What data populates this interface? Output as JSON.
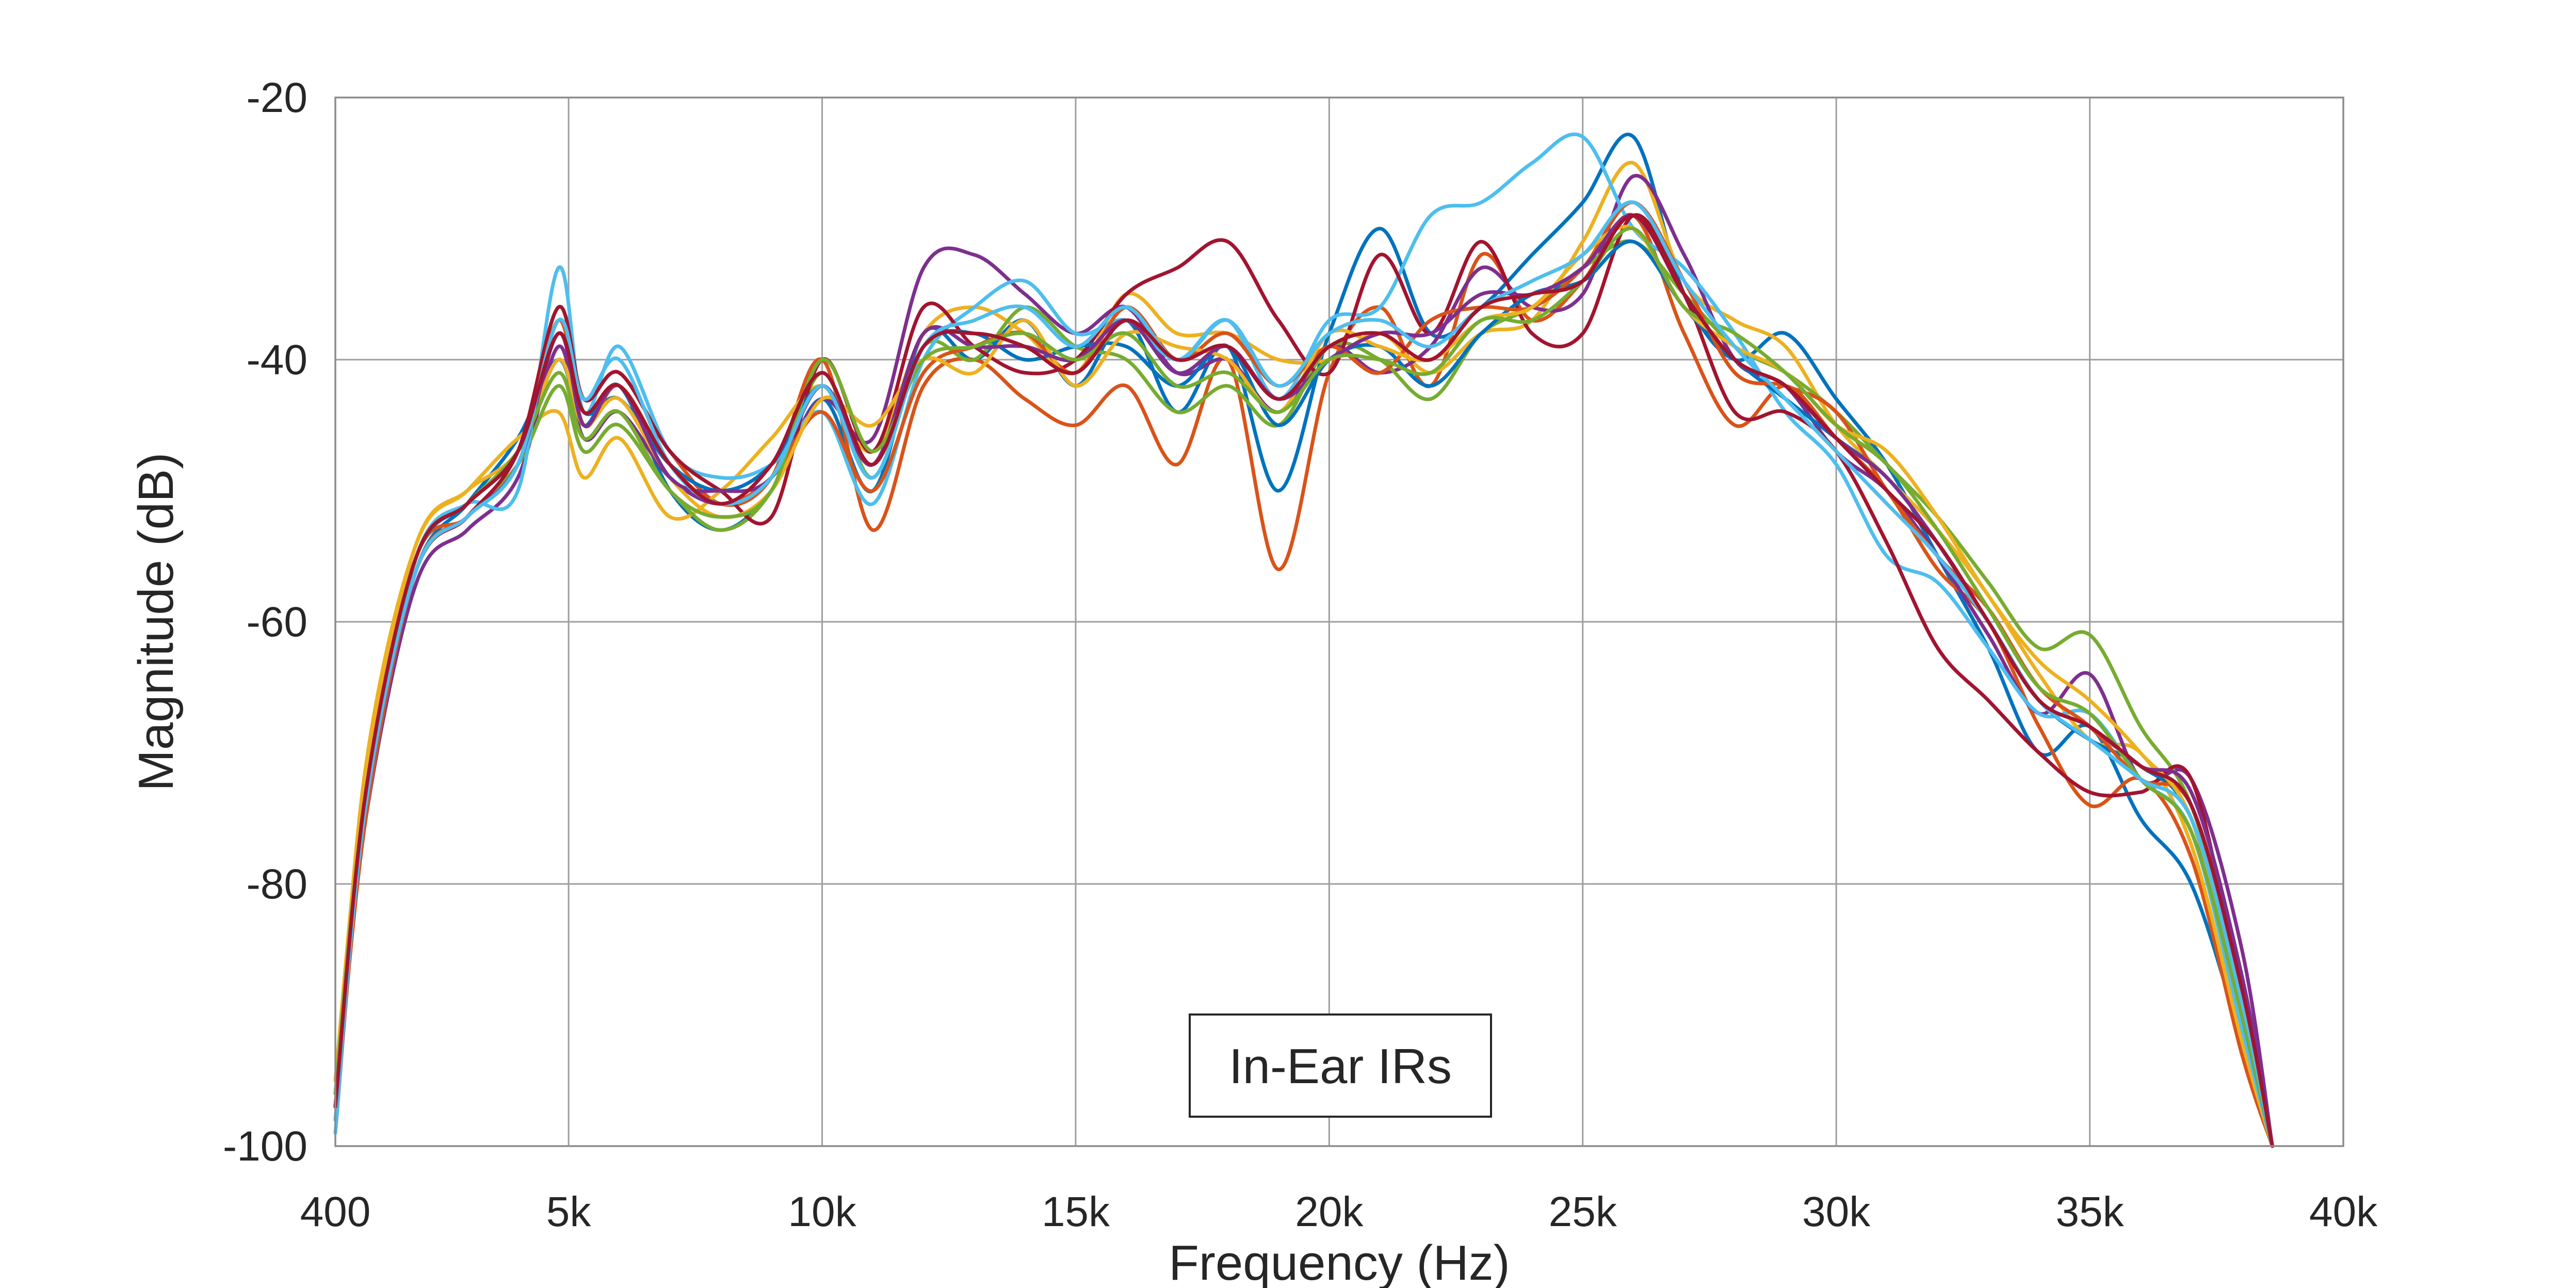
{
  "chart_data": {
    "type": "line",
    "title": "",
    "xlabel": "Frequency (Hz)",
    "ylabel": "Magnitude (dB)",
    "xlim": [
      400,
      40000
    ],
    "ylim": [
      -100,
      -20
    ],
    "x_ticks": [
      400,
      5000,
      10000,
      15000,
      20000,
      25000,
      30000,
      35000,
      40000
    ],
    "x_tick_labels": [
      "400",
      "5k",
      "10k",
      "15k",
      "20k",
      "25k",
      "30k",
      "35k",
      "40k"
    ],
    "y_ticks": [
      -20,
      -40,
      -60,
      -80,
      -100
    ],
    "y_tick_labels": [
      "-20",
      "-40",
      "-60",
      "-80",
      "-100"
    ],
    "grid": true,
    "legend": {
      "text": "In-Ear IRs",
      "placement": "bottom-center"
    },
    "x": [
      400,
      1000,
      2000,
      3000,
      4000,
      4800,
      5300,
      6000,
      7000,
      8000,
      9000,
      10000,
      11000,
      12000,
      13000,
      14000,
      15000,
      16000,
      17000,
      18000,
      19000,
      20000,
      21000,
      22000,
      23000,
      24000,
      25000,
      26000,
      27000,
      28000,
      29000,
      30000,
      31000,
      32000,
      33000,
      34000,
      35000,
      36000,
      37000,
      38000,
      38600
    ],
    "series": [
      {
        "color": "#0072BD",
        "values": [
          -98,
          -74,
          -56,
          -51,
          -46,
          -40,
          -45,
          -42,
          -50,
          -53,
          -50,
          -43,
          -50,
          -38,
          -40,
          -37,
          -42,
          -37,
          -44,
          -39,
          -50,
          -38,
          -30,
          -38,
          -36,
          -32,
          -28,
          -23,
          -35,
          -40,
          -38,
          -43,
          -48,
          -55,
          -62,
          -70,
          -68,
          -75,
          -80,
          -92,
          -100
        ]
      },
      {
        "color": "#D95319",
        "values": [
          -97,
          -73,
          -55,
          -52,
          -47,
          -36,
          -43,
          -41,
          -47,
          -51,
          -49,
          -40,
          -53,
          -42,
          -40,
          -43,
          -45,
          -42,
          -48,
          -40,
          -56,
          -41,
          -36,
          -42,
          -32,
          -37,
          -34,
          -29,
          -38,
          -45,
          -42,
          -46,
          -50,
          -56,
          -60,
          -68,
          -74,
          -72,
          -78,
          -93,
          -100
        ]
      },
      {
        "color": "#EDB120",
        "values": [
          -97,
          -71,
          -54,
          -50,
          -46,
          -44,
          -49,
          -46,
          -52,
          -50,
          -46,
          -42,
          -47,
          -38,
          -36,
          -38,
          -41,
          -35,
          -38,
          -38,
          -40,
          -40,
          -38,
          -41,
          -38,
          -37,
          -31,
          -25,
          -34,
          -37,
          -39,
          -45,
          -49,
          -53,
          -58,
          -64,
          -69,
          -70,
          -77,
          -92,
          -100
        ]
      },
      {
        "color": "#7E2F8E",
        "values": [
          -96,
          -75,
          -57,
          -53,
          -49,
          -39,
          -46,
          -44,
          -49,
          -51,
          -49,
          -43,
          -46,
          -33,
          -32,
          -35,
          -38,
          -36,
          -41,
          -40,
          -44,
          -39,
          -41,
          -39,
          -33,
          -36,
          -35,
          -26,
          -32,
          -40,
          -42,
          -47,
          -50,
          -55,
          -61,
          -67,
          -64,
          -72,
          -72,
          -85,
          -100
        ]
      },
      {
        "color": "#77AC30",
        "values": [
          -95,
          -73,
          -56,
          -52,
          -48,
          -42,
          -47,
          -45,
          -50,
          -53,
          -50,
          -41,
          -49,
          -39,
          -40,
          -36,
          -39,
          -40,
          -44,
          -42,
          -45,
          -39,
          -40,
          -43,
          -38,
          -36,
          -33,
          -31,
          -35,
          -39,
          -41,
          -44,
          -48,
          -52,
          -57,
          -62,
          -61,
          -68,
          -74,
          -88,
          -100
        ]
      },
      {
        "color": "#4DBEEE",
        "values": [
          -99,
          -74,
          -55,
          -51,
          -50,
          -33,
          -44,
          -39,
          -47,
          -49,
          -48,
          -44,
          -51,
          -40,
          -36,
          -34,
          -38,
          -37,
          -40,
          -37,
          -43,
          -37,
          -36,
          -29,
          -28,
          -25,
          -23,
          -30,
          -33,
          -38,
          -44,
          -48,
          -55,
          -57,
          -62,
          -67,
          -67,
          -72,
          -76,
          -91,
          -100
        ]
      },
      {
        "color": "#A2142F",
        "values": [
          -97,
          -74,
          -56,
          -52,
          -47,
          -36,
          -43,
          -41,
          -47,
          -50,
          -52,
          -40,
          -47,
          -36,
          -39,
          -41,
          -40,
          -35,
          -33,
          -31,
          -37,
          -41,
          -32,
          -38,
          -31,
          -38,
          -38,
          -29,
          -35,
          -44,
          -44,
          -47,
          -54,
          -62,
          -66,
          -70,
          -73,
          -73,
          -72,
          -89,
          -100
        ]
      },
      {
        "color": "#0072BD",
        "values": [
          -96,
          -72,
          -55,
          -51,
          -47,
          -38,
          -44,
          -43,
          -48,
          -50,
          -48,
          -42,
          -48,
          -39,
          -38,
          -40,
          -39,
          -39,
          -42,
          -39,
          -45,
          -40,
          -39,
          -42,
          -38,
          -35,
          -34,
          -31,
          -36,
          -40,
          -43,
          -46,
          -49,
          -54,
          -60,
          -66,
          -69,
          -71,
          -75,
          -90,
          -100
        ]
      },
      {
        "color": "#D95319",
        "values": [
          -98,
          -75,
          -56,
          -52,
          -48,
          -37,
          -45,
          -42,
          -48,
          -51,
          -49,
          -44,
          -50,
          -41,
          -39,
          -38,
          -41,
          -36,
          -40,
          -38,
          -42,
          -39,
          -41,
          -37,
          -36,
          -36,
          -33,
          -28,
          -34,
          -41,
          -42,
          -44,
          -50,
          -55,
          -59,
          -65,
          -68,
          -72,
          -74,
          -88,
          -100
        ]
      },
      {
        "color": "#EDB120",
        "values": [
          -95,
          -72,
          -54,
          -50,
          -47,
          -40,
          -45,
          -43,
          -49,
          -52,
          -50,
          -43,
          -45,
          -40,
          -41,
          -37,
          -42,
          -38,
          -39,
          -40,
          -44,
          -38,
          -39,
          -40,
          -37,
          -36,
          -32,
          -30,
          -36,
          -39,
          -41,
          -45,
          -47,
          -52,
          -58,
          -63,
          -66,
          -70,
          -75,
          -89,
          -100
        ]
      },
      {
        "color": "#7E2F8E",
        "values": [
          -97,
          -74,
          -56,
          -52,
          -48,
          -38,
          -45,
          -42,
          -49,
          -50,
          -49,
          -42,
          -48,
          -38,
          -39,
          -39,
          -40,
          -37,
          -41,
          -39,
          -43,
          -40,
          -38,
          -38,
          -35,
          -35,
          -33,
          -29,
          -35,
          -40,
          -42,
          -46,
          -49,
          -54,
          -60,
          -66,
          -68,
          -71,
          -73,
          -87,
          -100
        ]
      },
      {
        "color": "#77AC30",
        "values": [
          -96,
          -73,
          -55,
          -51,
          -47,
          -41,
          -46,
          -44,
          -50,
          -52,
          -50,
          -40,
          -47,
          -40,
          -39,
          -38,
          -40,
          -38,
          -42,
          -41,
          -44,
          -40,
          -40,
          -41,
          -37,
          -37,
          -34,
          -30,
          -36,
          -38,
          -41,
          -45,
          -48,
          -53,
          -59,
          -65,
          -67,
          -72,
          -76,
          -90,
          -100
        ]
      },
      {
        "color": "#4DBEEE",
        "values": [
          -98,
          -74,
          -56,
          -52,
          -48,
          -37,
          -43,
          -40,
          -48,
          -51,
          -49,
          -42,
          -49,
          -39,
          -37,
          -36,
          -39,
          -36,
          -40,
          -37,
          -42,
          -38,
          -37,
          -39,
          -36,
          -34,
          -32,
          -28,
          -34,
          -39,
          -43,
          -47,
          -51,
          -55,
          -60,
          -66,
          -69,
          -72,
          -75,
          -89,
          -100
        ]
      },
      {
        "color": "#A2142F",
        "values": [
          -97,
          -73,
          -55,
          -51,
          -47,
          -38,
          -44,
          -42,
          -48,
          -51,
          -48,
          -41,
          -48,
          -39,
          -38,
          -39,
          -41,
          -37,
          -40,
          -39,
          -43,
          -39,
          -38,
          -40,
          -36,
          -35,
          -34,
          -29,
          -35,
          -40,
          -42,
          -46,
          -50,
          -54,
          -60,
          -66,
          -68,
          -71,
          -74,
          -88,
          -100
        ]
      }
    ]
  }
}
